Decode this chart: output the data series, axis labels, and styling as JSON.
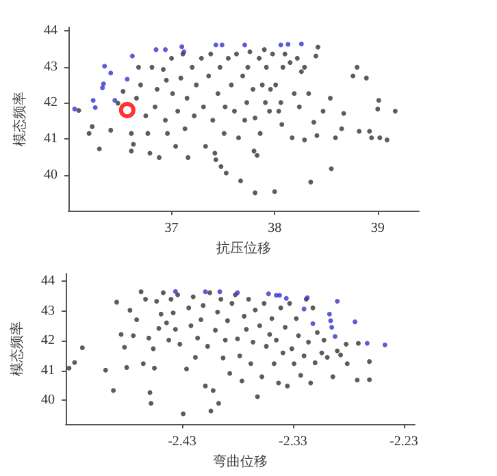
{
  "chart_data": [
    {
      "type": "scatter",
      "xlabel": "抗压位移",
      "ylabel": "模态频率",
      "xlim": [
        36,
        39.4
      ],
      "ylim": [
        39,
        44.1
      ],
      "xticks": [
        37,
        38,
        39
      ],
      "yticks": [
        40,
        41,
        42,
        43,
        44
      ],
      "grid": false,
      "marker": "circle",
      "series": [
        {
          "color": "#333333",
          "x": [
            36.1,
            36.2,
            36.23,
            36.3,
            36.41,
            36.48,
            36.53,
            36.61,
            36.63,
            36.61,
            36.66,
            36.7,
            36.68,
            36.75,
            36.77,
            36.79,
            36.81,
            36.84,
            36.88,
            36.86,
            36.92,
            36.94,
            36.95,
            36.96,
            37.0,
            37.01,
            37.04,
            37.06,
            37.09,
            37.11,
            37.13,
            37.15,
            37.16,
            37.2,
            37.22,
            37.24,
            37.29,
            37.31,
            37.33,
            37.36,
            37.38,
            37.4,
            37.42,
            37.43,
            37.45,
            37.47,
            37.48,
            37.51,
            37.52,
            37.53,
            37.55,
            37.58,
            37.61,
            37.63,
            37.65,
            37.67,
            37.69,
            37.71,
            37.73,
            37.74,
            37.76,
            37.79,
            37.8,
            37.81,
            37.81,
            37.83,
            37.85,
            37.86,
            37.88,
            37.9,
            37.91,
            37.92,
            37.95,
            37.96,
            37.98,
            38.0,
            38.01,
            38.04,
            38.06,
            38.07,
            38.08,
            38.1,
            38.15,
            38.17,
            38.19,
            38.22,
            38.24,
            38.26,
            38.29,
            38.29,
            38.33,
            38.35,
            38.38,
            38.4,
            38.41,
            38.42,
            38.47,
            38.54,
            38.55,
            38.59,
            38.65,
            38.67,
            38.76,
            38.8,
            38.82,
            38.89,
            38.92,
            38.94,
            39.0,
            39.01,
            39.02,
            39.09,
            39.17
          ],
          "values": [
            41.79,
            41.15,
            41.34,
            40.72,
            41.24,
            41.99,
            42.32,
            41.15,
            40.85,
            40.66,
            42.13,
            42.5,
            42.99,
            41.64,
            41.15,
            40.6,
            42.99,
            41.89,
            40.48,
            42.38,
            42.93,
            41.52,
            42.63,
            41.15,
            43.24,
            42.26,
            40.79,
            41.77,
            42.69,
            43.36,
            41.28,
            42.13,
            40.48,
            42.99,
            41.64,
            42.5,
            43.24,
            41.89,
            40.79,
            42.75,
            43.36,
            41.52,
            40.6,
            40.42,
            42.26,
            42.99,
            40.23,
            41.15,
            41.89,
            40.05,
            43.24,
            42.5,
            41.77,
            43.36,
            41.03,
            39.83,
            42.75,
            41.52,
            42.01,
            42.99,
            43.42,
            42.38,
            40.66,
            41.58,
            39.5,
            40.54,
            43.24,
            41.15,
            42.5,
            43.48,
            42.01,
            42.99,
            41.77,
            42.38,
            43.36,
            39.53,
            42.5,
            41.77,
            42.01,
            41.4,
            42.99,
            43.36,
            43.12,
            41.03,
            42.26,
            43.24,
            41.89,
            42.87,
            40.97,
            42.99,
            42.26,
            39.8,
            41.46,
            43.3,
            41.09,
            43.55,
            41.77,
            42.13,
            40.17,
            41.03,
            41.28,
            41.71,
            42.75,
            42.99,
            41.21,
            42.69,
            41.21,
            41.03,
            41.83,
            42.07,
            41.03,
            40.97,
            41.77
          ]
        },
        {
          "color": "#3333cc",
          "x": [
            36.06,
            36.24,
            36.26,
            36.35,
            36.34,
            36.33,
            36.41,
            36.45,
            36.57,
            36.62,
            36.85,
            36.94,
            37.1,
            37.12,
            37.43,
            37.49,
            37.71,
            38.06,
            38.13,
            38.26
          ],
          "values": [
            41.83,
            42.07,
            41.87,
            43.02,
            42.53,
            42.42,
            42.83,
            42.07,
            42.66,
            43.3,
            43.48,
            43.48,
            43.56,
            43.42,
            43.61,
            43.61,
            43.61,
            43.61,
            43.63,
            43.64
          ]
        },
        {
          "color": "#ff0000",
          "x": [
            36.57
          ],
          "values": [
            41.8
          ]
        }
      ]
    },
    {
      "type": "scatter",
      "xlabel": "弯曲位移",
      "ylabel": "模态频率",
      "xlim": [
        -2.535,
        -2.22
      ],
      "ylim": [
        39.2,
        44.25
      ],
      "xticks": [
        -2.43,
        -2.33,
        -2.23
      ],
      "yticks": [
        40,
        41,
        42,
        43,
        44
      ],
      "grid": false,
      "marker": "circle",
      "series": [
        {
          "color": "#333333",
          "x": [
            -2.532,
            -2.527,
            -2.52,
            -2.499,
            -2.492,
            -2.489,
            -2.485,
            -2.482,
            -2.48,
            -2.477,
            -2.474,
            -2.471,
            -2.467,
            -2.465,
            -2.463,
            -2.46,
            -2.459,
            -2.458,
            -2.456,
            -2.455,
            -2.453,
            -2.451,
            -2.449,
            -2.447,
            -2.444,
            -2.442,
            -2.44,
            -2.438,
            -2.436,
            -2.434,
            -2.432,
            -2.429,
            -2.426,
            -2.424,
            -2.422,
            -2.42,
            -2.418,
            -2.416,
            -2.413,
            -2.411,
            -2.409,
            -2.407,
            -2.405,
            -2.404,
            -2.402,
            -2.4,
            -2.398,
            -2.397,
            -2.395,
            -2.393,
            -2.391,
            -2.389,
            -2.387,
            -2.385,
            -2.382,
            -2.38,
            -2.378,
            -2.376,
            -2.374,
            -2.372,
            -2.37,
            -2.368,
            -2.366,
            -2.364,
            -2.362,
            -2.36,
            -2.358,
            -2.356,
            -2.354,
            -2.351,
            -2.349,
            -2.347,
            -2.345,
            -2.343,
            -2.341,
            -2.339,
            -2.337,
            -2.335,
            -2.333,
            -2.331,
            -2.329,
            -2.327,
            -2.325,
            -2.323,
            -2.32,
            -2.318,
            -2.316,
            -2.314,
            -2.312,
            -2.31,
            -2.308,
            -2.304,
            -2.302,
            -2.299,
            -2.294,
            -2.29,
            -2.287,
            -2.282,
            -2.281,
            -2.271,
            -2.261,
            -2.261,
            -2.272
          ],
          "values": [
            41.08,
            41.27,
            41.76,
            41.01,
            40.33,
            43.29,
            42.21,
            41.78,
            41.1,
            43.02,
            42.17,
            42.7,
            43.64,
            41.23,
            43.39,
            42.09,
            40.26,
            39.9,
            41.73,
            41.08,
            43.32,
            42.41,
            42.89,
            43.61,
            42.6,
            42.02,
            43.39,
            42.93,
            42.38,
            43.54,
            41.88,
            39.55,
            41.05,
            43.1,
            42.5,
            43.47,
            41.44,
            42.09,
            42.7,
            43.18,
            40.48,
            41.81,
            43.61,
            39.64,
            40.33,
            42.35,
            42.96,
            39.9,
            43.39,
            41.42,
            42.02,
            42.67,
            40.9,
            43.25,
            43.54,
            42.06,
            41.49,
            40.65,
            42.82,
            42.38,
            43.39,
            41.23,
            41.95,
            43.03,
            40.12,
            42.5,
            40.79,
            43.25,
            41.81,
            42.21,
            42.74,
            41.23,
            42.02,
            40.58,
            43.1,
            41.59,
            42.45,
            40.48,
            43.25,
            41.73,
            41.23,
            42.74,
            42.17,
            40.84,
            41.49,
            43.39,
            41.95,
            40.58,
            43.1,
            41.26,
            42.27,
            41.59,
            42.02,
            41.44,
            40.79,
            41.66,
            41.52,
            41.88,
            41.23,
            41.91,
            41.3,
            40.69,
            40.68
          ]
        },
        {
          "color": "#3333cc",
          "x": [
            -2.436,
            -2.409,
            -2.396,
            -2.38,
            -2.352,
            -2.345,
            -2.342,
            -2.336,
            -2.317,
            -2.32,
            -2.312,
            -2.297,
            -2.296,
            -2.295,
            -2.292,
            -2.29,
            -2.274,
            -2.263,
            -2.247
          ],
          "values": [
            43.65,
            43.64,
            43.64,
            43.61,
            43.57,
            43.52,
            43.52,
            43.42,
            43.44,
            43.06,
            42.57,
            42.89,
            42.67,
            42.45,
            42.14,
            43.32,
            42.63,
            41.91,
            41.86
          ]
        }
      ]
    }
  ]
}
